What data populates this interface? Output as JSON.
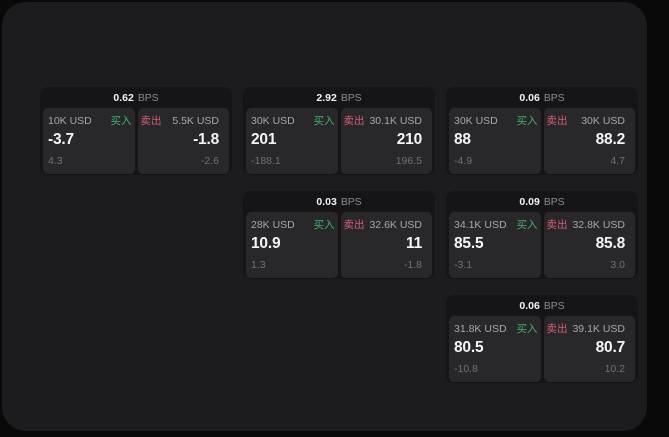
{
  "labels": {
    "bps": "BPS",
    "buy": "买入",
    "sell": "卖出"
  },
  "colors": {
    "buy": "#3fb470",
    "sell": "#d85c77"
  },
  "cards": [
    {
      "bps": "0.62",
      "col": 0,
      "row": 0,
      "buy": {
        "notional": "10K USD",
        "value": "-3.7",
        "sub": "4.3"
      },
      "sell": {
        "notional": "5.5K USD",
        "value": "-1.8",
        "sub": "-2.6"
      }
    },
    {
      "bps": "2.92",
      "col": 1,
      "row": 0,
      "buy": {
        "notional": "30K USD",
        "value": "201",
        "sub": "-188.1"
      },
      "sell": {
        "notional": "30.1K USD",
        "value": "210",
        "sub": "196.5"
      }
    },
    {
      "bps": "0.06",
      "col": 2,
      "row": 0,
      "buy": {
        "notional": "30K USD",
        "value": "88",
        "sub": "-4.9"
      },
      "sell": {
        "notional": "30K USD",
        "value": "88.2",
        "sub": "4.7"
      }
    },
    {
      "bps": "0.03",
      "col": 1,
      "row": 1,
      "buy": {
        "notional": "28K USD",
        "value": "10.9",
        "sub": "1.3"
      },
      "sell": {
        "notional": "32.6K USD",
        "value": "11",
        "sub": "-1.8"
      }
    },
    {
      "bps": "0.09",
      "col": 2,
      "row": 1,
      "buy": {
        "notional": "34.1K USD",
        "value": "85.5",
        "sub": "-3.1"
      },
      "sell": {
        "notional": "32.8K USD",
        "value": "85.8",
        "sub": "3.0"
      }
    },
    {
      "bps": "0.06",
      "col": 2,
      "row": 2,
      "buy": {
        "notional": "31.8K USD",
        "value": "80.5",
        "sub": "-10.8"
      },
      "sell": {
        "notional": "39.1K USD",
        "value": "80.7",
        "sub": "10.2"
      }
    }
  ]
}
